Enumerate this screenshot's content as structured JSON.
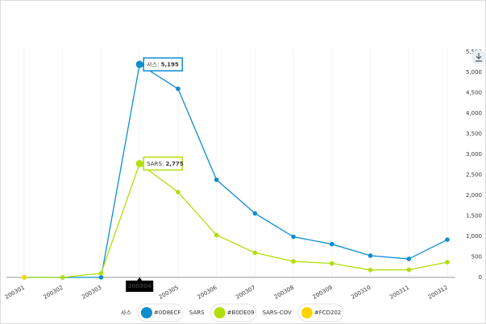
{
  "chart_data": {
    "type": "line",
    "categories": [
      "200301",
      "200302",
      "200303",
      "200304",
      "200305",
      "200306",
      "200307",
      "200308",
      "200309",
      "200310",
      "200311",
      "200312"
    ],
    "series": [
      {
        "name": "사스",
        "color": "#0D8ECF",
        "values": [
          0,
          0,
          0,
          5195,
          4600,
          2380,
          1560,
          990,
          810,
          530,
          450,
          920
        ],
        "value_labels": [
          null,
          null,
          null,
          "5,195",
          null,
          null,
          null,
          null,
          null,
          null,
          null,
          null
        ]
      },
      {
        "name": "SARS",
        "color": "#B0DE09",
        "values": [
          0,
          0,
          100,
          2775,
          2080,
          1030,
          600,
          390,
          340,
          180,
          185,
          370
        ],
        "value_labels": [
          null,
          null,
          null,
          "2,775",
          null,
          null,
          null,
          null,
          null,
          null,
          null,
          null
        ]
      },
      {
        "name": "SARS-COV",
        "color": "#FCD202",
        "values": [
          0,
          null,
          null,
          null,
          null,
          null,
          null,
          null,
          null,
          null,
          null,
          null
        ]
      }
    ],
    "highlight_category": 3,
    "ylim": [
      0,
      5500
    ],
    "yticks": [
      0,
      {
        "value": 500,
        "label": "500"
      },
      {
        "value": 1000,
        "label": "1,000"
      },
      {
        "value": 1500,
        "label": "1,500"
      },
      {
        "value": 2000,
        "label": "2,000"
      },
      {
        "value": 2500,
        "label": "2,500"
      },
      {
        "value": 3000,
        "label": "3,000"
      },
      {
        "value": 3500,
        "label": "3,500"
      },
      {
        "value": 4000,
        "label": "4,000"
      },
      {
        "value": 4500,
        "label": "4,500"
      },
      {
        "value": 5000,
        "label": "5,000"
      },
      {
        "value": 5500,
        "label": "5,500"
      }
    ]
  }
}
